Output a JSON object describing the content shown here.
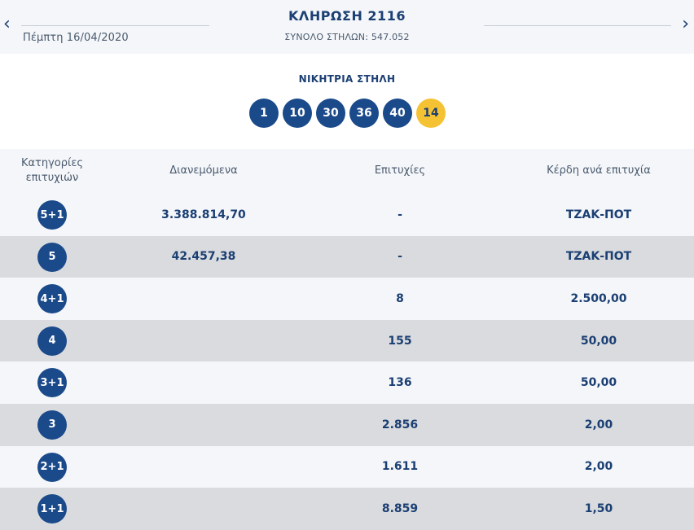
{
  "header": {
    "prev_icon": "chevron-left-icon",
    "next_icon": "chevron-right-icon",
    "date": "Πέμπτη 16/04/2020",
    "title": "ΚΛΗΡΩΣΗ 2116",
    "total_columns": "ΣΥΝΟΛΟ ΣΤΗΛΩΝ: 547.052"
  },
  "winning": {
    "title": "ΝΙΚΗΤΡΙΑ ΣΤΗΛΗ",
    "numbers": [
      "1",
      "10",
      "30",
      "36",
      "40"
    ],
    "bonus": "14"
  },
  "table": {
    "headers": {
      "category": "Κατηγορίες επιτυχιών",
      "distributed": "Διανεμόμενα",
      "wins": "Επιτυχίες",
      "prize_per_win": "Κέρδη ανά επιτυχία"
    },
    "rows": [
      {
        "category": "5+1",
        "distributed": "3.388.814,70",
        "wins": "-",
        "prize": "ΤΖΑΚ-ΠΟΤ"
      },
      {
        "category": "5",
        "distributed": "42.457,38",
        "wins": "-",
        "prize": "ΤΖΑΚ-ΠΟΤ"
      },
      {
        "category": "4+1",
        "distributed": "",
        "wins": "8",
        "prize": "2.500,00"
      },
      {
        "category": "4",
        "distributed": "",
        "wins": "155",
        "prize": "50,00"
      },
      {
        "category": "3+1",
        "distributed": "",
        "wins": "136",
        "prize": "50,00"
      },
      {
        "category": "3",
        "distributed": "",
        "wins": "2.856",
        "prize": "2,00"
      },
      {
        "category": "2+1",
        "distributed": "",
        "wins": "1.611",
        "prize": "2,00"
      },
      {
        "category": "1+1",
        "distributed": "",
        "wins": "8.859",
        "prize": "1,50"
      }
    ]
  },
  "colors": {
    "primary": "#1b3f73",
    "ball": "#1b4a8a",
    "bonus": "#f4c233",
    "row_light": "#f4f6f9",
    "row_dark": "#d9dbde"
  }
}
